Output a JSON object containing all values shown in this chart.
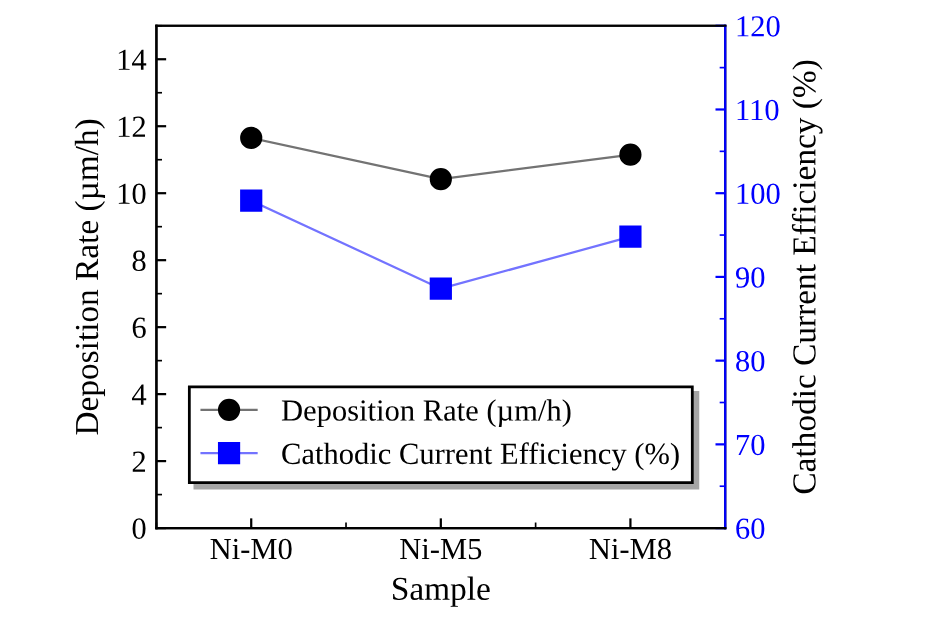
{
  "chart_data": {
    "type": "line",
    "xlabel": "Sample",
    "ylabel": "Deposition Rate (µm/h)",
    "y2label": "Cathodic Current Efficiency (%)",
    "categories": [
      "Ni-M0",
      "Ni-M5",
      "Ni-M8"
    ],
    "series": [
      {
        "name": "Deposition Rate (µm/h)",
        "color": "#000000",
        "marker": "circle",
        "values": [
          11.65,
          10.42,
          11.15
        ]
      },
      {
        "name": "Cathodic Current Efficiency (%)",
        "color": "#0000ff",
        "marker": "square",
        "axis": "y2",
        "values": [
          99.1,
          88.6,
          94.8
        ]
      }
    ],
    "ylim": [
      0,
      15
    ],
    "yticks": [
      0,
      2,
      4,
      6,
      8,
      10,
      12,
      14
    ],
    "y2lim": [
      60,
      120
    ],
    "y2ticks": [
      60,
      70,
      80,
      90,
      100,
      110,
      120
    ],
    "legend": "bottom",
    "grid": false
  }
}
